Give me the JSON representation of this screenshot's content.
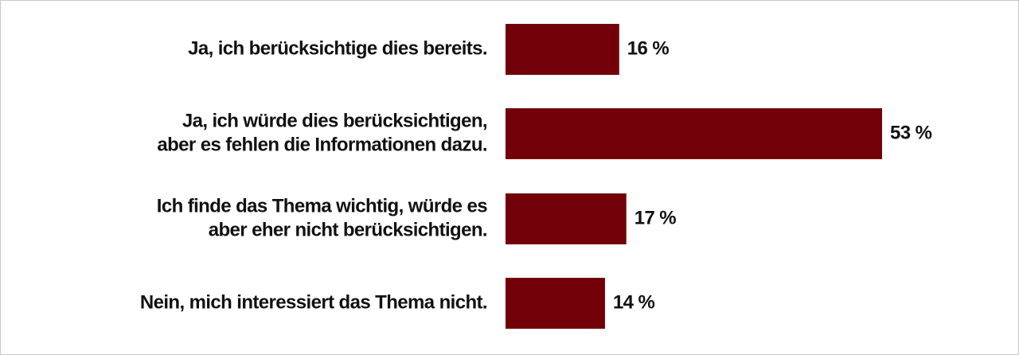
{
  "chart_data": {
    "type": "bar",
    "orientation": "horizontal",
    "categories": [
      [
        "Ja, ich berücksichtige dies bereits."
      ],
      [
        "Ja, ich würde dies berücksichtigen,",
        "aber es fehlen die Informationen dazu."
      ],
      [
        "Ich finde das Thema wichtig, würde es",
        "aber eher nicht berücksichtigen."
      ],
      [
        "Nein, mich interessiert das Thema nicht."
      ]
    ],
    "values": [
      16,
      53,
      17,
      14
    ],
    "value_labels": [
      "16 %",
      "53 %",
      "17 %",
      "14 %"
    ],
    "color": "#720008"
  }
}
